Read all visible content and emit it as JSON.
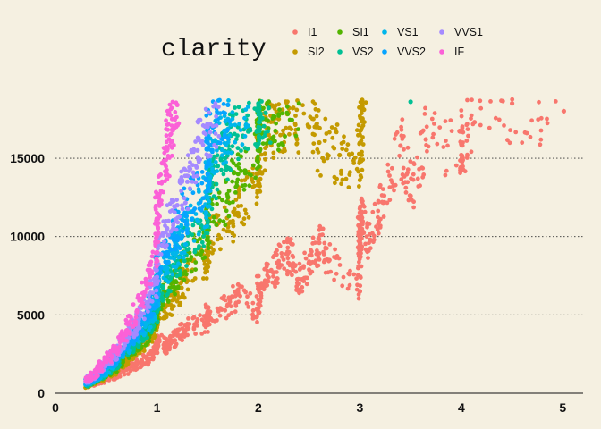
{
  "chart_data": {
    "type": "scatter",
    "title": "",
    "xlabel": "",
    "ylabel": "",
    "xlim": [
      0,
      5.2
    ],
    "ylim": [
      0,
      18823
    ],
    "x_ticks": [
      "0",
      "1",
      "2",
      "3",
      "4",
      "5"
    ],
    "y_ticks": [
      "0",
      "5000",
      "10000",
      "15000"
    ],
    "grid": "horizontal dotted",
    "legend": {
      "title": "clarity",
      "placement": "top",
      "entries": [
        {
          "name": "I1",
          "color": "#f8766d"
        },
        {
          "name": "SI2",
          "color": "#c49a00"
        },
        {
          "name": "SI1",
          "color": "#53b400"
        },
        {
          "name": "VS2",
          "color": "#00c094"
        },
        {
          "name": "VS1",
          "color": "#00b6eb"
        },
        {
          "name": "VVS2",
          "color": "#06a4ff"
        },
        {
          "name": "VVS1",
          "color": "#a58aff"
        },
        {
          "name": "IF",
          "color": "#fb61d7"
        }
      ]
    },
    "series": [
      {
        "name": "I1",
        "color": "#f8766d",
        "points": [
          [
            0.3,
            600
          ],
          [
            0.4,
            700
          ],
          [
            0.5,
            1000
          ],
          [
            0.6,
            1200
          ],
          [
            0.7,
            1500
          ],
          [
            0.8,
            1800
          ],
          [
            0.9,
            2200
          ],
          [
            1.0,
            2800
          ],
          [
            1.0,
            3400
          ],
          [
            1.1,
            3000
          ],
          [
            1.2,
            3800
          ],
          [
            1.3,
            4200
          ],
          [
            1.5,
            4600
          ],
          [
            1.5,
            5200
          ],
          [
            1.7,
            5600
          ],
          [
            1.8,
            6400
          ],
          [
            2.0,
            5200
          ],
          [
            2.0,
            6800
          ],
          [
            2.1,
            7400
          ],
          [
            2.2,
            8200
          ],
          [
            2.3,
            9000
          ],
          [
            2.4,
            7000
          ],
          [
            2.5,
            8400
          ],
          [
            2.6,
            9600
          ],
          [
            2.7,
            8500
          ],
          [
            3.0,
            6500
          ],
          [
            3.0,
            9500
          ],
          [
            3.0,
            10500
          ],
          [
            3.02,
            11200
          ],
          [
            3.1,
            9800
          ],
          [
            3.22,
            12200
          ],
          [
            3.4,
            15800
          ],
          [
            3.5,
            12600
          ],
          [
            3.65,
            16200
          ],
          [
            4.0,
            15200
          ],
          [
            4.0,
            15900
          ],
          [
            4.13,
            17300
          ],
          [
            4.5,
            18500
          ],
          [
            5.01,
            18000
          ]
        ]
      },
      {
        "name": "SI2",
        "color": "#c49a00",
        "points": [
          [
            0.3,
            500
          ],
          [
            0.4,
            800
          ],
          [
            0.5,
            1200
          ],
          [
            0.6,
            1500
          ],
          [
            0.7,
            2200
          ],
          [
            0.8,
            2800
          ],
          [
            0.9,
            3400
          ],
          [
            1.0,
            4200
          ],
          [
            1.0,
            5200
          ],
          [
            1.1,
            5600
          ],
          [
            1.2,
            6400
          ],
          [
            1.3,
            7200
          ],
          [
            1.5,
            8500
          ],
          [
            1.5,
            10000
          ],
          [
            1.7,
            10800
          ],
          [
            1.8,
            11500
          ],
          [
            2.0,
            13500
          ],
          [
            2.0,
            15500
          ],
          [
            2.1,
            16500
          ],
          [
            2.2,
            17500
          ],
          [
            2.3,
            18200
          ],
          [
            2.5,
            17000
          ],
          [
            2.6,
            16000
          ],
          [
            2.8,
            15200
          ],
          [
            3.0,
            14800
          ],
          [
            3.01,
            16800
          ],
          [
            3.01,
            18300
          ],
          [
            3.04,
            18100
          ]
        ]
      },
      {
        "name": "SI1",
        "color": "#53b400",
        "points": [
          [
            0.3,
            550
          ],
          [
            0.4,
            900
          ],
          [
            0.5,
            1300
          ],
          [
            0.6,
            1700
          ],
          [
            0.7,
            2500
          ],
          [
            0.8,
            3000
          ],
          [
            0.9,
            3800
          ],
          [
            1.0,
            4800
          ],
          [
            1.0,
            6000
          ],
          [
            1.1,
            6500
          ],
          [
            1.2,
            7500
          ],
          [
            1.3,
            8500
          ],
          [
            1.5,
            9800
          ],
          [
            1.5,
            11500
          ],
          [
            1.7,
            12500
          ],
          [
            1.8,
            14000
          ],
          [
            2.0,
            15500
          ],
          [
            2.0,
            17500
          ],
          [
            2.1,
            18300
          ],
          [
            2.2,
            17800
          ],
          [
            2.4,
            18500
          ]
        ]
      },
      {
        "name": "VS2",
        "color": "#00c094",
        "points": [
          [
            0.3,
            600
          ],
          [
            0.4,
            950
          ],
          [
            0.5,
            1400
          ],
          [
            0.6,
            1900
          ],
          [
            0.7,
            2700
          ],
          [
            0.8,
            3300
          ],
          [
            0.9,
            4200
          ],
          [
            1.0,
            5200
          ],
          [
            1.0,
            6600
          ],
          [
            1.1,
            7200
          ],
          [
            1.2,
            8400
          ],
          [
            1.3,
            9500
          ],
          [
            1.5,
            11000
          ],
          [
            1.5,
            13000
          ],
          [
            1.6,
            14500
          ],
          [
            1.7,
            15800
          ],
          [
            1.8,
            17000
          ],
          [
            2.0,
            17800
          ],
          [
            2.0,
            18500
          ],
          [
            2.1,
            18200
          ],
          [
            3.5,
            18600
          ]
        ]
      },
      {
        "name": "VS1",
        "color": "#00b6eb",
        "points": [
          [
            0.3,
            650
          ],
          [
            0.4,
            1000
          ],
          [
            0.5,
            1500
          ],
          [
            0.6,
            2100
          ],
          [
            0.7,
            3000
          ],
          [
            0.8,
            3600
          ],
          [
            0.9,
            4600
          ],
          [
            1.0,
            5600
          ],
          [
            1.0,
            7200
          ],
          [
            1.1,
            8000
          ],
          [
            1.2,
            9400
          ],
          [
            1.3,
            10500
          ],
          [
            1.5,
            12500
          ],
          [
            1.5,
            14500
          ],
          [
            1.6,
            16000
          ],
          [
            1.7,
            17500
          ],
          [
            1.9,
            18300
          ]
        ]
      },
      {
        "name": "VVS2",
        "color": "#06a4ff",
        "points": [
          [
            0.3,
            700
          ],
          [
            0.4,
            1100
          ],
          [
            0.5,
            1700
          ],
          [
            0.6,
            2300
          ],
          [
            0.7,
            3300
          ],
          [
            0.8,
            4000
          ],
          [
            0.9,
            5200
          ],
          [
            1.0,
            6200
          ],
          [
            1.0,
            8000
          ],
          [
            1.1,
            9000
          ],
          [
            1.2,
            10500
          ],
          [
            1.3,
            11800
          ],
          [
            1.5,
            14000
          ],
          [
            1.5,
            16000
          ],
          [
            1.6,
            17500
          ],
          [
            1.7,
            18400
          ]
        ]
      },
      {
        "name": "VVS1",
        "color": "#a58aff",
        "points": [
          [
            0.3,
            750
          ],
          [
            0.4,
            1200
          ],
          [
            0.5,
            1900
          ],
          [
            0.6,
            2600
          ],
          [
            0.7,
            3600
          ],
          [
            0.8,
            4400
          ],
          [
            0.9,
            5800
          ],
          [
            1.0,
            7000
          ],
          [
            1.0,
            9000
          ],
          [
            1.1,
            10500
          ],
          [
            1.2,
            12000
          ],
          [
            1.3,
            13500
          ],
          [
            1.4,
            15500
          ],
          [
            1.5,
            17000
          ],
          [
            1.6,
            18300
          ]
        ]
      },
      {
        "name": "IF",
        "color": "#fb61d7",
        "points": [
          [
            0.3,
            800
          ],
          [
            0.4,
            1300
          ],
          [
            0.5,
            2100
          ],
          [
            0.6,
            2900
          ],
          [
            0.7,
            4000
          ],
          [
            0.8,
            5200
          ],
          [
            0.9,
            7000
          ],
          [
            1.0,
            9000
          ],
          [
            1.0,
            11500
          ],
          [
            1.05,
            13500
          ],
          [
            1.1,
            15500
          ],
          [
            1.15,
            17500
          ],
          [
            1.2,
            18400
          ]
        ]
      }
    ]
  }
}
